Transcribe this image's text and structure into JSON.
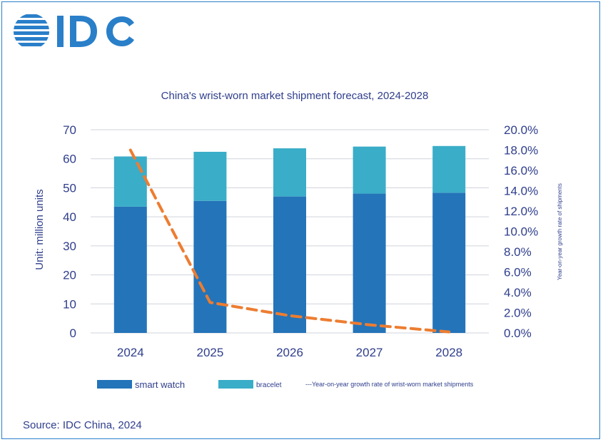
{
  "logo": {
    "text": "IDC"
  },
  "source": "Source: IDC China, 2024",
  "chart_data": {
    "type": "bar",
    "title": "China's wrist-worn market shipment forecast, 2024-2028",
    "categories": [
      "2024",
      "2025",
      "2026",
      "2027",
      "2028"
    ],
    "stacked": true,
    "series": [
      {
        "name": "smart watch",
        "type": "bar",
        "axis": "left",
        "color": "#2474b9",
        "values": [
          43.5,
          45.5,
          47.0,
          48.0,
          48.3
        ]
      },
      {
        "name": "bracelet",
        "type": "bar",
        "axis": "left",
        "color": "#3aadc8",
        "values": [
          17.3,
          16.9,
          16.6,
          16.2,
          16.1
        ]
      },
      {
        "name": "---Year-on-year growth rate of wrist-worn market shipments",
        "type": "line",
        "axis": "right",
        "style": "dashed",
        "color": "#ed7d31",
        "values": [
          0.18,
          0.03,
          0.017,
          0.008,
          0.001
        ]
      }
    ],
    "ylabel": "Unit: million units",
    "ylabel_right": "Year-on-year growth rate of shipments",
    "ylim": [
      0,
      70
    ],
    "yticks": [
      "0",
      "10",
      "20",
      "30",
      "40",
      "50",
      "60",
      "70"
    ],
    "ylim_right": [
      0,
      0.2
    ],
    "yticks_right": [
      "0.0%",
      "2.0%",
      "4.0%",
      "6.0%",
      "8.0%",
      "10.0%",
      "12.0%",
      "14.0%",
      "16.0%",
      "18.0%",
      "20.0%"
    ],
    "grid": true,
    "legend_position": "bottom"
  }
}
